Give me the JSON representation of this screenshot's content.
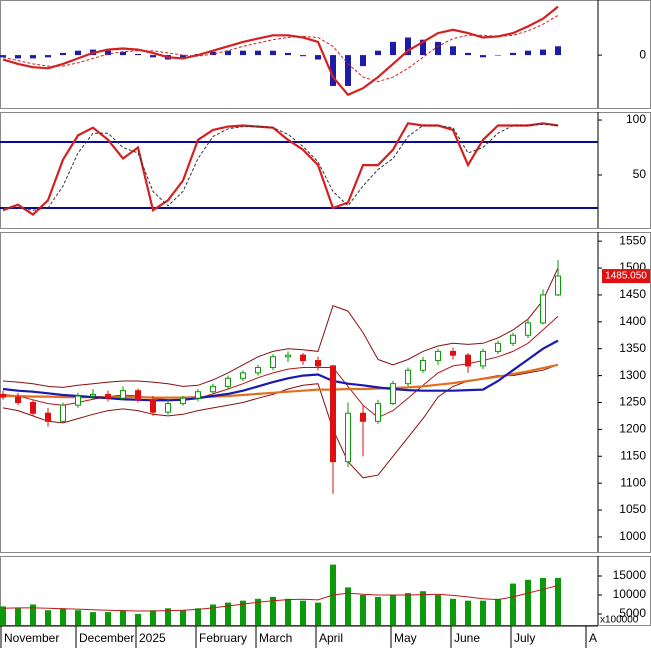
{
  "chart_data": [
    {
      "type": "macd",
      "ylim": [
        -48,
        50
      ],
      "yticks": [
        0
      ],
      "bars": {
        "color": "#1c1ca8",
        "values": [
          -2,
          -3,
          -3,
          -2,
          2,
          4,
          5,
          4,
          3,
          1,
          -2,
          -4,
          -3,
          1,
          3,
          4,
          4,
          4,
          4,
          2,
          -1,
          -4,
          -28,
          -28,
          -10,
          4,
          12,
          16,
          14,
          12,
          8,
          2,
          -2,
          0,
          2,
          4,
          5,
          8,
          null,
          null
        ]
      },
      "lines": [
        {
          "color": "#d42020",
          "thick": true,
          "dashed": false,
          "values": [
            -4,
            -8,
            -11,
            -12,
            -8,
            -3,
            2,
            5,
            6,
            5,
            2,
            -2,
            -3,
            0,
            4,
            8,
            12,
            15,
            18,
            18,
            16,
            12,
            -20,
            -36,
            -30,
            -20,
            -8,
            4,
            12,
            20,
            23,
            20,
            16,
            17,
            20,
            26,
            33,
            44,
            null,
            null
          ]
        },
        {
          "color": "#d42020",
          "thick": false,
          "dashed": true,
          "values": [
            -2,
            -5,
            -8,
            -10,
            -10,
            -7,
            -3,
            1,
            3,
            4,
            4,
            2,
            0,
            -1,
            1,
            4,
            8,
            11,
            14,
            16,
            17,
            16,
            8,
            -8,
            -20,
            -24,
            -20,
            -12,
            -2,
            8,
            15,
            18,
            18,
            17,
            18,
            22,
            28,
            36,
            null,
            null
          ]
        }
      ]
    },
    {
      "type": "stochastic",
      "ylim": [
        1.8,
        107.3
      ],
      "yticks": [
        50,
        100
      ],
      "hlines": [
        80,
        20
      ],
      "hline_color": "#0a0a9a",
      "lines": [
        {
          "color": "#d42020",
          "thick": true,
          "dashed": false,
          "values": [
            18,
            23,
            14,
            27,
            64,
            86,
            93,
            82,
            65,
            75,
            18,
            27,
            45,
            82,
            91,
            94,
            95,
            94,
            93,
            82,
            73,
            59,
            20,
            25,
            59,
            59,
            73,
            97,
            95,
            95,
            91,
            59,
            82,
            95,
            95,
            95,
            97,
            95,
            null,
            null
          ]
        },
        {
          "color": "#333333",
          "thick": false,
          "dashed": true,
          "values": [
            20,
            20,
            18,
            20,
            40,
            70,
            88,
            88,
            75,
            70,
            35,
            22,
            35,
            65,
            85,
            92,
            94,
            94,
            93,
            87,
            76,
            62,
            35,
            22,
            40,
            55,
            65,
            85,
            95,
            95,
            93,
            70,
            75,
            88,
            95,
            95,
            96,
            95,
            null,
            null
          ]
        }
      ]
    },
    {
      "type": "candlestick",
      "ylim": [
        972,
        1567
      ],
      "yticks": [
        1000,
        1050,
        1100,
        1150,
        1200,
        1250,
        1300,
        1350,
        1400,
        1450,
        1500,
        1550
      ],
      "up_color": "#0a9a0a",
      "down_color": "#e01010",
      "open": [
        1265,
        1260,
        1250,
        1230,
        1215,
        1245,
        1262,
        1265,
        1258,
        1272,
        1255,
        1232,
        1248,
        1258,
        1270,
        1280,
        1295,
        1305,
        1315,
        1335,
        1338,
        1328,
        1318,
        1140,
        1230,
        1215,
        1248,
        1285,
        1310,
        1328,
        1345,
        1338,
        1318,
        1345,
        1360,
        1375,
        1398,
        1450,
        null,
        null
      ],
      "high": [
        1272,
        1268,
        1255,
        1240,
        1250,
        1268,
        1275,
        1272,
        1280,
        1276,
        1262,
        1255,
        1262,
        1275,
        1285,
        1300,
        1310,
        1320,
        1340,
        1345,
        1342,
        1335,
        1320,
        1250,
        1245,
        1255,
        1290,
        1315,
        1335,
        1350,
        1352,
        1342,
        1350,
        1365,
        1380,
        1405,
        1460,
        1515,
        null,
        null
      ],
      "low": [
        1255,
        1245,
        1225,
        1205,
        1212,
        1240,
        1255,
        1252,
        1255,
        1250,
        1225,
        1228,
        1244,
        1252,
        1265,
        1276,
        1290,
        1300,
        1310,
        1325,
        1320,
        1310,
        1080,
        1130,
        1150,
        1210,
        1245,
        1280,
        1305,
        1320,
        1330,
        1305,
        1312,
        1340,
        1355,
        1370,
        1395,
        1448,
        null,
        null
      ],
      "close": [
        1260,
        1250,
        1230,
        1215,
        1245,
        1262,
        1265,
        1258,
        1272,
        1255,
        1232,
        1248,
        1258,
        1270,
        1280,
        1295,
        1305,
        1315,
        1335,
        1338,
        1328,
        1318,
        1140,
        1230,
        1215,
        1248,
        1285,
        1310,
        1328,
        1345,
        1338,
        1318,
        1345,
        1360,
        1375,
        1398,
        1450,
        1485.05,
        null,
        null
      ],
      "last_price": {
        "value": 1485.05,
        "label": "1485.050"
      },
      "lines": [
        {
          "color": "#8b1010",
          "thick": false,
          "dashed": false,
          "values": [
            1290,
            1288,
            1285,
            1280,
            1278,
            1282,
            1285,
            1288,
            1290,
            1290,
            1288,
            1285,
            1280,
            1282,
            1292,
            1305,
            1320,
            1335,
            1345,
            1350,
            1348,
            1345,
            1430,
            1420,
            1380,
            1330,
            1320,
            1330,
            1345,
            1355,
            1360,
            1358,
            1360,
            1370,
            1385,
            1405,
            1440,
            1500,
            null,
            null
          ]
        },
        {
          "color": "#8b1010",
          "thick": false,
          "dashed": false,
          "values": [
            1240,
            1235,
            1225,
            1215,
            1212,
            1220,
            1228,
            1235,
            1238,
            1235,
            1228,
            1225,
            1228,
            1235,
            1240,
            1245,
            1250,
            1258,
            1265,
            1275,
            1282,
            1285,
            1200,
            1140,
            1110,
            1115,
            1150,
            1185,
            1220,
            1260,
            1280,
            1290,
            1295,
            1300,
            1300,
            1305,
            1310,
            1320,
            null,
            null
          ]
        },
        {
          "color": "#b01818",
          "thick": false,
          "dashed": false,
          "values": [
            1265,
            1262,
            1255,
            1248,
            1245,
            1250,
            1256,
            1261,
            1264,
            1262,
            1258,
            1255,
            1254,
            1258,
            1266,
            1275,
            1285,
            1296,
            1305,
            1312,
            1315,
            1315,
            1315,
            1280,
            1245,
            1222,
            1235,
            1258,
            1282,
            1305,
            1318,
            1322,
            1328,
            1335,
            1345,
            1360,
            1385,
            1410,
            null,
            null
          ]
        },
        {
          "color": "#e07020",
          "thick": true,
          "dashed": false,
          "values": [
            1262,
            1262,
            1261,
            1261,
            1260,
            1260,
            1260,
            1260,
            1260,
            1260,
            1259,
            1259,
            1259,
            1260,
            1261,
            1262,
            1264,
            1266,
            1268,
            1270,
            1272,
            1274,
            1274,
            1275,
            1275,
            1276,
            1277,
            1278,
            1280,
            1283,
            1286,
            1290,
            1294,
            1298,
            1303,
            1308,
            1314,
            1320,
            null,
            null
          ]
        },
        {
          "color": "#1a1ab0",
          "thick": true,
          "dashed": false,
          "values": [
            1275,
            1272,
            1270,
            1267,
            1264,
            1262,
            1260,
            1258,
            1256,
            1255,
            1254,
            1254,
            1255,
            1258,
            1262,
            1266,
            1272,
            1280,
            1288,
            1295,
            1300,
            1302,
            1290,
            1285,
            1282,
            1278,
            1275,
            1273,
            1272,
            1272,
            1272,
            1273,
            1274,
            1290,
            1310,
            1330,
            1350,
            1365,
            null,
            null
          ]
        }
      ]
    },
    {
      "type": "volume",
      "ylim": [
        2105,
        20263
      ],
      "yticks": [
        5000,
        10000,
        15000
      ],
      "unit_label": "x100000",
      "categories": [
        "November",
        null,
        null,
        null,
        null,
        "December",
        null,
        null,
        null,
        "2025",
        null,
        null,
        null,
        "February",
        null,
        null,
        null,
        "March",
        null,
        null,
        null,
        "April",
        null,
        null,
        null,
        null,
        "May",
        null,
        null,
        null,
        "June",
        null,
        null,
        null,
        "July",
        null,
        null,
        null,
        null,
        "A"
      ],
      "color": "#0a9a0a",
      "values": [
        7000,
        6500,
        7500,
        6000,
        6500,
        6000,
        5500,
        5500,
        6000,
        5000,
        6000,
        6500,
        6000,
        6500,
        7500,
        8000,
        8500,
        9000,
        9500,
        9000,
        8500,
        8000,
        18000,
        12000,
        10000,
        9500,
        10000,
        10500,
        11000,
        10000,
        9000,
        8500,
        8500,
        9000,
        13000,
        14000,
        14500,
        14500,
        null,
        null
      ],
      "lines": [
        {
          "color": "#c01818",
          "thick": false,
          "dashed": false,
          "values": [
            6500,
            6600,
            6600,
            6500,
            6400,
            6300,
            6100,
            6000,
            5900,
            5800,
            5800,
            5900,
            6000,
            6200,
            6600,
            7100,
            7600,
            8100,
            8500,
            8800,
            8900,
            8700,
            10000,
            10500,
            10200,
            10000,
            10000,
            10000,
            10100,
            10200,
            9900,
            9500,
            9000,
            8800,
            9500,
            10500,
            11500,
            12500,
            null,
            null
          ]
        }
      ]
    }
  ]
}
